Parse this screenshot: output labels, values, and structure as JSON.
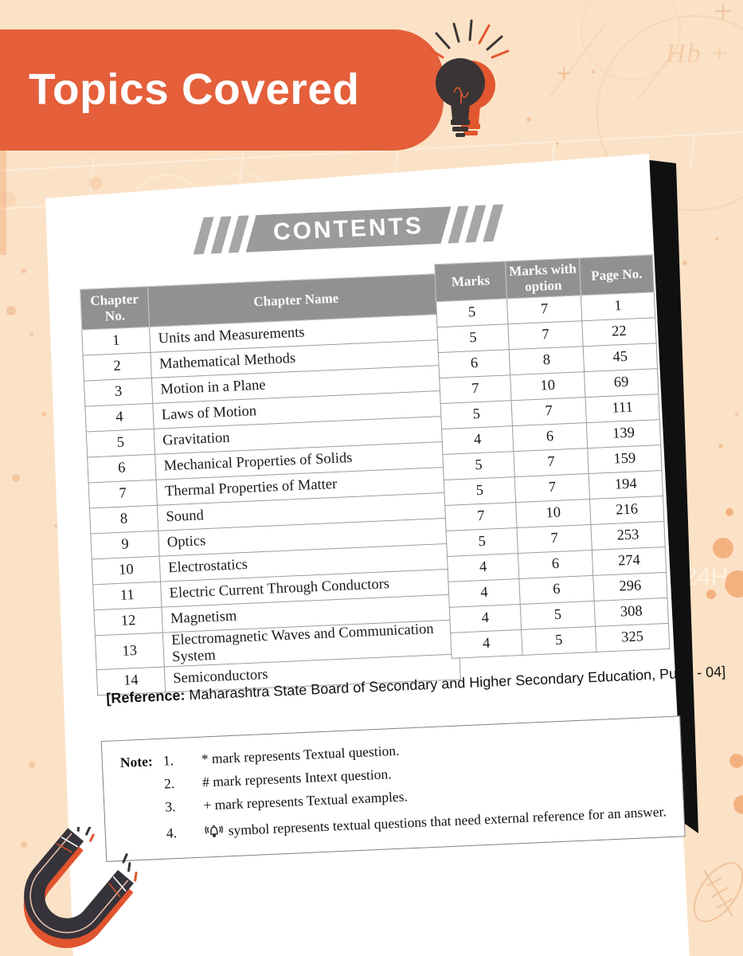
{
  "banner": {
    "title": "Topics Covered"
  },
  "contents": {
    "heading": "CONTENTS"
  },
  "table": {
    "headers": {
      "chapter_no": "Chapter No.",
      "chapter_name": "Chapter Name",
      "marks": "Marks",
      "marks_with_option": "Marks with option",
      "page_no": "Page No."
    },
    "rows": [
      {
        "no": "1",
        "name": "Units and Measurements",
        "marks": "5",
        "marks_with_option": "7",
        "page": "1"
      },
      {
        "no": "2",
        "name": "Mathematical Methods",
        "marks": "5",
        "marks_with_option": "7",
        "page": "22"
      },
      {
        "no": "3",
        "name": "Motion in a Plane",
        "marks": "6",
        "marks_with_option": "8",
        "page": "45"
      },
      {
        "no": "4",
        "name": "Laws of Motion",
        "marks": "7",
        "marks_with_option": "10",
        "page": "69"
      },
      {
        "no": "5",
        "name": "Gravitation",
        "marks": "5",
        "marks_with_option": "7",
        "page": "111"
      },
      {
        "no": "6",
        "name": "Mechanical Properties of Solids",
        "marks": "4",
        "marks_with_option": "6",
        "page": "139"
      },
      {
        "no": "7",
        "name": "Thermal Properties of Matter",
        "marks": "5",
        "marks_with_option": "7",
        "page": "159"
      },
      {
        "no": "8",
        "name": "Sound",
        "marks": "5",
        "marks_with_option": "7",
        "page": "194"
      },
      {
        "no": "9",
        "name": "Optics",
        "marks": "7",
        "marks_with_option": "10",
        "page": "216"
      },
      {
        "no": "10",
        "name": "Electrostatics",
        "marks": "5",
        "marks_with_option": "7",
        "page": "253"
      },
      {
        "no": "11",
        "name": "Electric Current Through Conductors",
        "marks": "4",
        "marks_with_option": "6",
        "page": "274"
      },
      {
        "no": "12",
        "name": "Magnetism",
        "marks": "4",
        "marks_with_option": "6",
        "page": "296"
      },
      {
        "no": "13",
        "name": "Electromagnetic Waves and Communication System",
        "marks": "4",
        "marks_with_option": "5",
        "page": "308"
      },
      {
        "no": "14",
        "name": "Semiconductors",
        "marks": "4",
        "marks_with_option": "5",
        "page": "325"
      }
    ]
  },
  "reference": {
    "label": "[Reference:",
    "text": " Maharashtra State Board of Secondary and Higher Secondary Education, Pune - 04]"
  },
  "note": {
    "label": "Note:",
    "items": [
      {
        "num": "1.",
        "text": "* mark represents Textual question."
      },
      {
        "num": "2.",
        "text": "# mark represents Intext question."
      },
      {
        "num": "3.",
        "text": "+ mark represents Textual examples."
      },
      {
        "num": "4.",
        "icon": "bell-icon",
        "text": "symbol represents textual questions that need external reference for an answer."
      }
    ]
  },
  "background": {
    "texts": {
      "formula": "Hb +",
      "hours": "24H"
    }
  },
  "icons": {
    "bulb": "lightbulb-icon",
    "magnet": "magnet-icon",
    "bell": "bell-icon"
  },
  "colors": {
    "background": "#fbe2c6",
    "banner_orange": "#e45f3a",
    "header_gray": "#919194",
    "band_gray": "#9b9b9b",
    "paper": "#ffffff",
    "shadow_black": "#101010",
    "magnet_dark": "#36333a",
    "magnet_orange": "#e0542e"
  }
}
